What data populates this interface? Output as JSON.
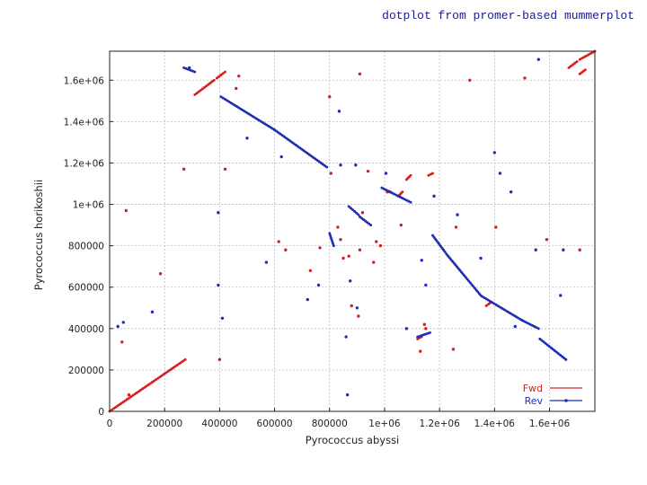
{
  "header": {
    "title": "dotplot from promer-based mummerplot"
  },
  "colors": {
    "fwd": "#d42020",
    "rev": "#1f2fb4",
    "grid": "#bdbdbd",
    "title": "#1a1a8c"
  },
  "chart_data": {
    "type": "scatter",
    "title": "dotplot from promer-based mummerplot",
    "xlabel": "Pyrococcus abyssi",
    "ylabel": "Pyrococcus horikoshii",
    "xlim": [
      0,
      1765000
    ],
    "ylim": [
      0,
      1740000
    ],
    "xticks": [
      0,
      200000,
      400000,
      600000,
      800000,
      1000000,
      1200000,
      1400000,
      1600000
    ],
    "xtick_labels": [
      "0",
      "200000",
      "400000",
      "600000",
      "800000",
      "1e+06",
      "1.2e+06",
      "1.4e+06",
      "1.6e+06"
    ],
    "yticks": [
      0,
      200000,
      400000,
      600000,
      800000,
      1000000,
      1200000,
      1400000,
      1600000
    ],
    "ytick_labels": [
      "0",
      "200000",
      "400000",
      "600000",
      "800000",
      "1e+06",
      "1.2e+06",
      "1.4e+06",
      "1.6e+06"
    ],
    "grid": true,
    "legend_position": "bottom-right",
    "series": [
      {
        "name": "Fwd",
        "color": "#d42020",
        "segments": [
          [
            [
              0,
              0
            ],
            [
              275000,
              250000
            ]
          ],
          [
            [
              310000,
              1530000
            ],
            [
              380000,
              1600000
            ]
          ],
          [
            [
              390000,
              1610000
            ],
            [
              420000,
              1640000
            ]
          ],
          [
            [
              1670000,
              1660000
            ],
            [
              1700000,
              1690000
            ]
          ],
          [
            [
              1710000,
              1700000
            ],
            [
              1765000,
              1740000
            ]
          ],
          [
            [
              1710000,
              1630000
            ],
            [
              1730000,
              1650000
            ]
          ],
          [
            [
              1080000,
              1120000
            ],
            [
              1095000,
              1140000
            ]
          ],
          [
            [
              1050000,
              1040000
            ],
            [
              1065000,
              1060000
            ]
          ],
          [
            [
              1160000,
              1140000
            ],
            [
              1175000,
              1150000
            ]
          ],
          [
            [
              1370000,
              510000
            ],
            [
              1385000,
              525000
            ]
          ],
          [
            [
              1120000,
              350000
            ],
            [
              1135000,
              360000
            ]
          ]
        ],
        "points": [
          [
            70000,
            80000
          ],
          [
            60000,
            970000
          ],
          [
            45000,
            335000
          ],
          [
            185000,
            665000
          ],
          [
            270000,
            1170000
          ],
          [
            400000,
            250000
          ],
          [
            420000,
            1170000
          ],
          [
            460000,
            1560000
          ],
          [
            470000,
            1620000
          ],
          [
            640000,
            780000
          ],
          [
            730000,
            680000
          ],
          [
            765000,
            790000
          ],
          [
            800000,
            1520000
          ],
          [
            805000,
            1150000
          ],
          [
            830000,
            890000
          ],
          [
            840000,
            830000
          ],
          [
            850000,
            740000
          ],
          [
            870000,
            750000
          ],
          [
            880000,
            510000
          ],
          [
            905000,
            460000
          ],
          [
            910000,
            780000
          ],
          [
            920000,
            960000
          ],
          [
            940000,
            1160000
          ],
          [
            960000,
            720000
          ],
          [
            970000,
            820000
          ],
          [
            985000,
            800000
          ],
          [
            1010000,
            1060000
          ],
          [
            1020000,
            1060000
          ],
          [
            1060000,
            900000
          ],
          [
            1130000,
            290000
          ],
          [
            1145000,
            420000
          ],
          [
            1150000,
            400000
          ],
          [
            1250000,
            300000
          ],
          [
            1260000,
            890000
          ],
          [
            1310000,
            1600000
          ],
          [
            1405000,
            890000
          ],
          [
            1510000,
            1610000
          ],
          [
            1590000,
            830000
          ],
          [
            1710000,
            780000
          ],
          [
            910000,
            1630000
          ],
          [
            615000,
            820000
          ]
        ]
      },
      {
        "name": "Rev",
        "color": "#1f2fb4",
        "segments": [
          [
            [
              270000,
              1660000
            ],
            [
              310000,
              1640000
            ]
          ],
          [
            [
              405000,
              1520000
            ],
            [
              600000,
              1360000
            ]
          ],
          [
            [
              600000,
              1360000
            ],
            [
              790000,
              1180000
            ]
          ],
          [
            [
              870000,
              990000
            ],
            [
              905000,
              950000
            ]
          ],
          [
            [
              910000,
              940000
            ],
            [
              950000,
              900000
            ]
          ],
          [
            [
              990000,
              1080000
            ],
            [
              1095000,
              1010000
            ]
          ],
          [
            [
              1175000,
              850000
            ],
            [
              1220000,
              770000
            ]
          ],
          [
            [
              1225000,
              760000
            ],
            [
              1350000,
              560000
            ]
          ],
          [
            [
              1355000,
              555000
            ],
            [
              1500000,
              440000
            ]
          ],
          [
            [
              1500000,
              440000
            ],
            [
              1560000,
              400000
            ]
          ],
          [
            [
              1565000,
              350000
            ],
            [
              1660000,
              250000
            ]
          ],
          [
            [
              800000,
              860000
            ],
            [
              815000,
              800000
            ]
          ],
          [
            [
              1120000,
              360000
            ],
            [
              1165000,
              380000
            ]
          ]
        ],
        "points": [
          [
            30000,
            410000
          ],
          [
            50000,
            430000
          ],
          [
            155000,
            480000
          ],
          [
            290000,
            1660000
          ],
          [
            395000,
            610000
          ],
          [
            395000,
            960000
          ],
          [
            410000,
            450000
          ],
          [
            500000,
            1320000
          ],
          [
            570000,
            720000
          ],
          [
            625000,
            1230000
          ],
          [
            720000,
            540000
          ],
          [
            760000,
            610000
          ],
          [
            835000,
            1450000
          ],
          [
            840000,
            1190000
          ],
          [
            860000,
            360000
          ],
          [
            865000,
            80000
          ],
          [
            875000,
            630000
          ],
          [
            895000,
            1190000
          ],
          [
            900000,
            500000
          ],
          [
            1005000,
            1150000
          ],
          [
            1080000,
            400000
          ],
          [
            1135000,
            730000
          ],
          [
            1150000,
            610000
          ],
          [
            1180000,
            1040000
          ],
          [
            1265000,
            950000
          ],
          [
            1350000,
            740000
          ],
          [
            1400000,
            1250000
          ],
          [
            1420000,
            1150000
          ],
          [
            1460000,
            1060000
          ],
          [
            1475000,
            410000
          ],
          [
            1550000,
            780000
          ],
          [
            1560000,
            1700000
          ],
          [
            1640000,
            560000
          ],
          [
            1650000,
            780000
          ]
        ]
      }
    ]
  }
}
